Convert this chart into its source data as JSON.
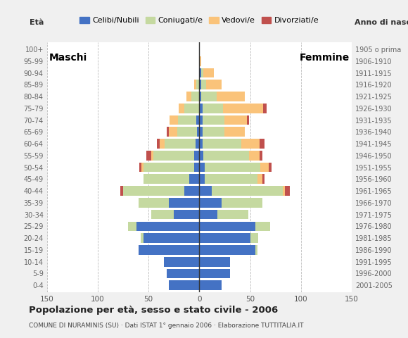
{
  "age_groups": [
    "0-4",
    "5-9",
    "10-14",
    "15-19",
    "20-24",
    "25-29",
    "30-34",
    "35-39",
    "40-44",
    "45-49",
    "50-54",
    "55-59",
    "60-64",
    "65-69",
    "70-74",
    "75-79",
    "80-84",
    "85-89",
    "90-94",
    "95-99",
    "100+"
  ],
  "birth_years": [
    "2001-2005",
    "1996-2000",
    "1991-1995",
    "1986-1990",
    "1981-1985",
    "1976-1980",
    "1971-1975",
    "1966-1970",
    "1961-1965",
    "1956-1960",
    "1951-1955",
    "1946-1950",
    "1941-1945",
    "1936-1940",
    "1931-1935",
    "1926-1930",
    "1921-1925",
    "1916-1920",
    "1911-1915",
    "1906-1910",
    "1905 o prima"
  ],
  "males_celibe": [
    30,
    32,
    35,
    60,
    55,
    62,
    25,
    30,
    15,
    10,
    5,
    5,
    4,
    2,
    3,
    0,
    0,
    0,
    0,
    0,
    0
  ],
  "males_coniugato": [
    0,
    0,
    0,
    0,
    3,
    8,
    22,
    30,
    60,
    45,
    50,
    40,
    30,
    20,
    18,
    15,
    8,
    3,
    0,
    0,
    0
  ],
  "males_vedovo": [
    0,
    0,
    0,
    0,
    0,
    0,
    0,
    0,
    0,
    0,
    2,
    2,
    5,
    8,
    8,
    5,
    5,
    2,
    0,
    0,
    0
  ],
  "males_divorziato": [
    0,
    0,
    0,
    0,
    0,
    0,
    0,
    0,
    3,
    0,
    2,
    5,
    3,
    2,
    0,
    0,
    0,
    0,
    0,
    0,
    0
  ],
  "females_nubile": [
    22,
    30,
    30,
    55,
    50,
    55,
    18,
    22,
    12,
    5,
    5,
    4,
    3,
    3,
    3,
    3,
    2,
    2,
    2,
    0,
    0
  ],
  "females_coniugata": [
    0,
    0,
    0,
    2,
    8,
    15,
    30,
    40,
    70,
    52,
    55,
    45,
    38,
    22,
    22,
    20,
    15,
    5,
    2,
    0,
    0
  ],
  "females_vedova": [
    0,
    0,
    0,
    0,
    0,
    0,
    0,
    0,
    2,
    5,
    8,
    10,
    18,
    20,
    22,
    40,
    28,
    15,
    10,
    2,
    0
  ],
  "females_divorziata": [
    0,
    0,
    0,
    0,
    0,
    0,
    0,
    0,
    5,
    2,
    3,
    3,
    5,
    0,
    2,
    3,
    0,
    0,
    0,
    0,
    0
  ],
  "color_celibe": "#4472c4",
  "color_coniugato": "#c5d9a0",
  "color_vedovo": "#fac37a",
  "color_divorziato": "#c0504d",
  "bg_color": "#f0f0f0",
  "plot_bg": "#ffffff",
  "xlim": 150,
  "title": "Popolazione per età, sesso e stato civile - 2006",
  "subtitle": "COMUNE DI NURAMINIS (SU) · Dati ISTAT 1° gennaio 2006 · Elaborazione TUTTITALIA.IT",
  "legend_labels": [
    "Celibi/Nubili",
    "Coniugati/e",
    "Vedovi/e",
    "Divorziati/e"
  ],
  "label_maschi": "Maschi",
  "label_femmine": "Femmine",
  "label_eta": "Età",
  "label_anno": "Anno di nascita"
}
